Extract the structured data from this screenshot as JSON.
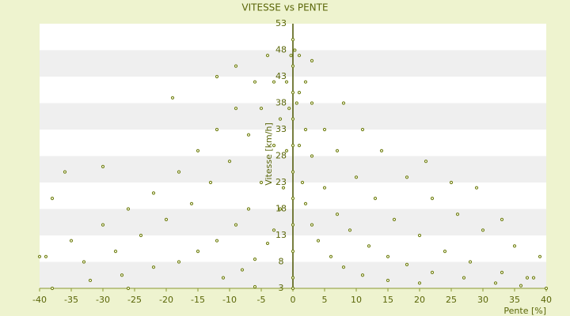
{
  "chart_data": {
    "type": "scatter",
    "title": "VITESSE vs PENTE",
    "x_label": "Pente [%]",
    "y_label": "Vitesse [km/h]",
    "color": "#6b7a10",
    "grid": true,
    "xlim": [
      -40,
      40
    ],
    "xticks": [
      -40,
      -35,
      -30,
      -25,
      -20,
      -15,
      -10,
      -5,
      0,
      5,
      10,
      15,
      20,
      25,
      30,
      35,
      40
    ],
    "ylim": [
      3,
      53
    ],
    "yticks": [
      3,
      8,
      13,
      18,
      23,
      28,
      33,
      38,
      43,
      48,
      53
    ],
    "x": [
      0.3,
      0.6,
      1,
      1.5,
      2,
      3,
      4,
      6,
      8,
      11,
      15,
      20,
      1,
      2,
      3,
      5,
      7,
      9,
      12,
      15,
      18,
      22,
      27,
      32,
      3,
      5,
      7,
      10,
      13,
      16,
      20,
      24,
      28,
      33,
      38,
      8,
      11,
      14,
      18,
      22,
      26,
      30,
      35,
      39,
      1,
      3,
      2,
      21,
      25,
      29,
      33,
      37,
      40,
      36,
      -0.3,
      -0.6,
      -1,
      -1.5,
      -2,
      -3,
      -4,
      -6,
      -8,
      -11,
      -1,
      -2,
      -3,
      -5,
      -7,
      -9,
      -12,
      -15,
      -18,
      -22,
      -27,
      -32,
      -3,
      -5,
      -7,
      -10,
      -13,
      -16,
      -20,
      -24,
      -28,
      -33,
      -6,
      -9,
      -12,
      -15,
      -18,
      -22,
      -26,
      -30,
      -35,
      -39,
      -4,
      -9,
      -12,
      -19,
      -30,
      -36,
      -38,
      -40,
      -38,
      -26,
      -6,
      0,
      0,
      0,
      0,
      0,
      0,
      0,
      0,
      0,
      0,
      0
    ],
    "values": [
      48,
      38,
      30,
      23,
      19,
      15,
      12,
      9,
      7,
      5.5,
      4.5,
      4,
      40,
      33,
      28,
      22,
      17,
      14,
      11,
      9,
      7.5,
      6,
      5,
      4,
      38,
      33,
      29,
      24,
      20,
      16,
      13,
      10,
      8,
      6,
      5,
      38,
      33,
      29,
      24,
      20,
      17,
      14,
      11,
      9,
      47,
      46,
      42,
      27,
      23,
      22,
      16,
      5,
      3,
      3.5,
      47,
      37,
      29,
      22,
      18,
      14,
      11.5,
      8.5,
      6.5,
      5,
      42,
      35,
      30,
      23,
      18,
      15,
      12,
      10,
      8,
      7,
      5.5,
      4.5,
      42,
      37,
      32,
      27,
      23,
      19,
      16,
      13,
      10,
      8,
      42,
      37,
      33,
      29,
      25,
      21,
      18,
      15,
      12,
      9,
      47,
      45,
      43,
      39,
      26,
      25,
      20,
      9,
      3,
      3,
      3.3,
      3,
      5,
      10,
      15,
      20,
      25,
      30,
      35,
      40,
      45,
      50
    ]
  }
}
